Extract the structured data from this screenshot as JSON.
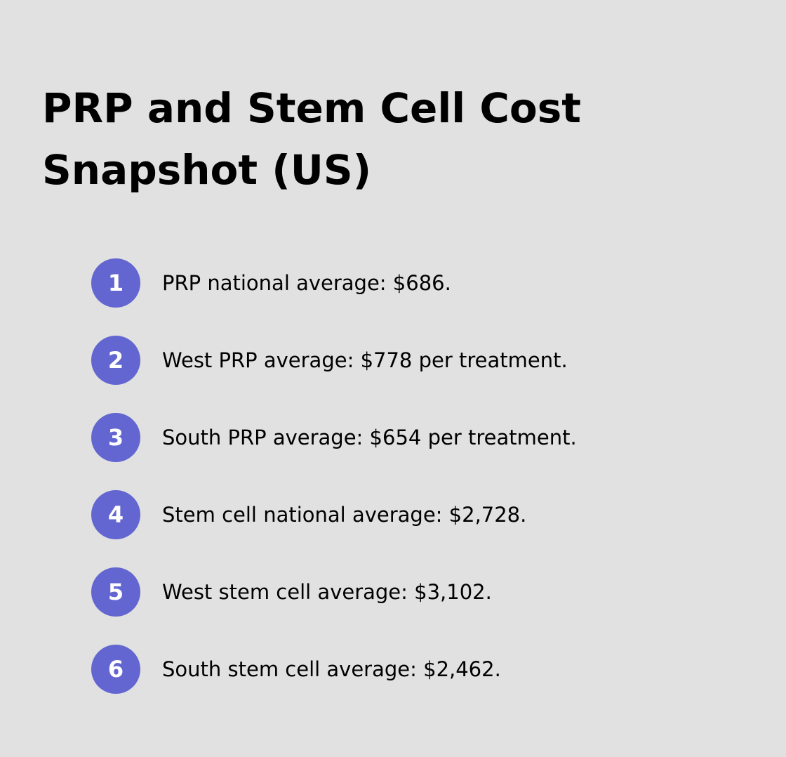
{
  "title": "PRP and Stem Cell Cost Snapshot (US)",
  "accent_color": "#6366d1",
  "items": [
    {
      "number": "1",
      "text": "PRP national average: $686."
    },
    {
      "number": "2",
      "text": "West PRP average: $778 per treatment."
    },
    {
      "number": "3",
      "text": "South PRP average: $654 per treatment."
    },
    {
      "number": "4",
      "text": "Stem cell national average: $2,728."
    },
    {
      "number": "5",
      "text": "West stem cell average: $3,102."
    },
    {
      "number": "6",
      "text": "South stem cell average: $2,462."
    }
  ]
}
